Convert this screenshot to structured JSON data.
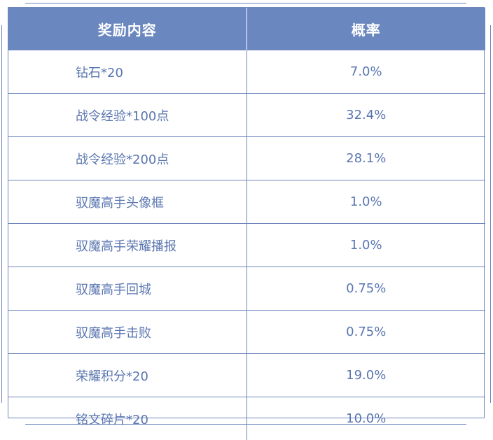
{
  "table": {
    "headers": [
      "奖励内容",
      "概率"
    ],
    "rows": [
      {
        "item": "钻石*20",
        "rate": "7.0%"
      },
      {
        "item": "战令经验*100点",
        "rate": "32.4%"
      },
      {
        "item": "战令经验*200点",
        "rate": "28.1%"
      },
      {
        "item": "驭魔高手头像框",
        "rate": "1.0%"
      },
      {
        "item": "驭魔高手荣耀播报",
        "rate": "1.0%"
      },
      {
        "item": "驭魔高手回城",
        "rate": "0.75%"
      },
      {
        "item": "驭魔高手击败",
        "rate": "0.75%"
      },
      {
        "item": "荣耀积分*20",
        "rate": "19.0%"
      },
      {
        "item": "铭文碎片*20",
        "rate": "10.0%"
      }
    ]
  },
  "colors": {
    "header_bg": "#6b87c0",
    "text": "#5a76b0",
    "border": "#6e86bd"
  }
}
